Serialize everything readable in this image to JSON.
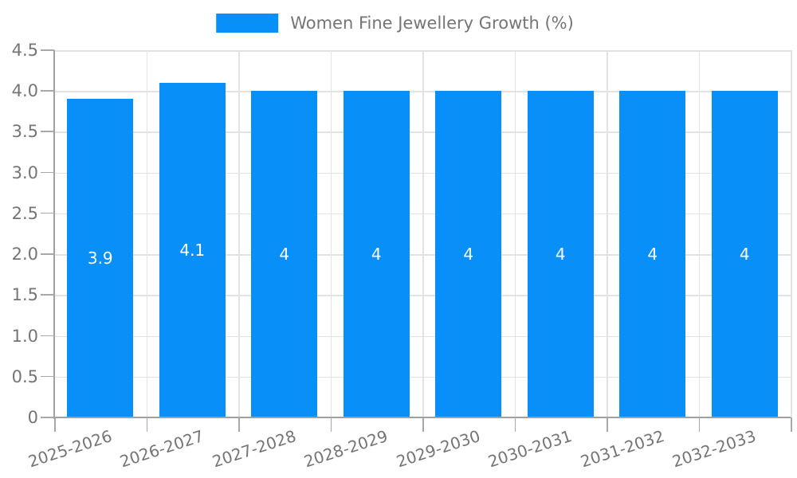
{
  "legend": {
    "label": "Women Fine Jewellery Growth (%)"
  },
  "chart_data": {
    "type": "bar",
    "title": "",
    "xlabel": "",
    "ylabel": "",
    "categories": [
      "2025-2026",
      "2026-2027",
      "2027-2028",
      "2028-2029",
      "2029-2030",
      "2030-2031",
      "2031-2032",
      "2032-2033"
    ],
    "series": [
      {
        "name": "Women Fine Jewellery Growth (%)",
        "values": [
          3.9,
          4.1,
          4,
          4,
          4,
          4,
          4,
          4
        ],
        "value_labels": [
          "3.9",
          "4.1",
          "4",
          "4",
          "4",
          "4",
          "4",
          "4"
        ]
      }
    ],
    "ylim": [
      0,
      4.5
    ],
    "ytick_step": 0.5,
    "ytick_labels": [
      "0",
      "0.5",
      "1.0",
      "1.5",
      "2.0",
      "2.5",
      "3.0",
      "3.5",
      "4.0",
      "4.5"
    ],
    "grid": true,
    "legend_position": "top-center",
    "colors": {
      "bar": "#0890f8",
      "value_label": "#ffffff",
      "tick_label": "#757575",
      "grid_line": "#e3e3e3",
      "axis_line": "#a0a0a0",
      "background": "#ffffff"
    }
  }
}
